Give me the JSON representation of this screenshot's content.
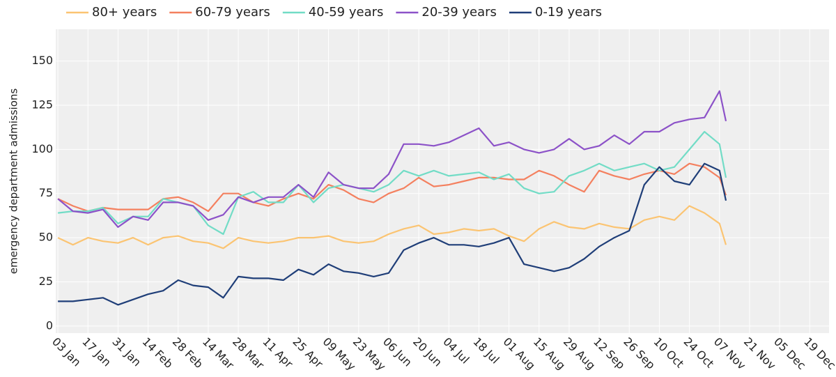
{
  "chart_data": {
    "type": "line",
    "y_label": "emergency department admissions",
    "x": [
      "03 Jan",
      "10 Jan",
      "17 Jan",
      "24 Jan",
      "31 Jan",
      "07 Feb",
      "14 Feb",
      "21 Feb",
      "28 Feb",
      "07 Mar",
      "14 Mar",
      "21 Mar",
      "28 Mar",
      "04 Apr",
      "11 Apr",
      "18 Apr",
      "25 Apr",
      "02 May",
      "09 May",
      "16 May",
      "23 May",
      "30 May",
      "06 Jun",
      "13 Jun",
      "20 Jun",
      "27 Jun",
      "04 Jul",
      "11 Jul",
      "18 Jul",
      "25 Jul",
      "01 Aug",
      "08 Aug",
      "15 Aug",
      "22 Aug",
      "29 Aug",
      "05 Sep",
      "12 Sep",
      "19 Sep",
      "26 Sep",
      "03 Oct",
      "10 Oct",
      "17 Oct",
      "24 Oct",
      "31 Oct",
      "07 Nov",
      "10 Nov"
    ],
    "series": [
      {
        "name": "80+ years",
        "color": "#fbc472",
        "values": [
          50,
          46,
          50,
          48,
          47,
          50,
          46,
          50,
          51,
          48,
          47,
          44,
          50,
          48,
          47,
          48,
          50,
          50,
          51,
          48,
          47,
          48,
          52,
          55,
          57,
          52,
          53,
          55,
          54,
          55,
          51,
          48,
          55,
          59,
          56,
          55,
          58,
          56,
          55,
          60,
          62,
          60,
          68,
          64,
          58,
          46
        ]
      },
      {
        "name": "60-79 years",
        "color": "#f4805f",
        "values": [
          72,
          68,
          65,
          67,
          66,
          66,
          66,
          72,
          73,
          70,
          65,
          75,
          75,
          70,
          68,
          72,
          75,
          72,
          80,
          77,
          72,
          70,
          75,
          78,
          84,
          79,
          80,
          82,
          84,
          84,
          83,
          83,
          88,
          85,
          80,
          76,
          88,
          85,
          83,
          86,
          88,
          86,
          92,
          90,
          84,
          74
        ]
      },
      {
        "name": "40-59 years",
        "color": "#72dcc6",
        "values": [
          64,
          65,
          65,
          67,
          58,
          62,
          62,
          72,
          70,
          68,
          57,
          52,
          73,
          76,
          70,
          70,
          80,
          70,
          78,
          80,
          78,
          76,
          80,
          88,
          85,
          88,
          85,
          86,
          87,
          83,
          86,
          78,
          75,
          76,
          85,
          88,
          92,
          88,
          90,
          92,
          88,
          90,
          100,
          110,
          103,
          84
        ]
      },
      {
        "name": "20-39 years",
        "color": "#8c52c8",
        "values": [
          72,
          65,
          64,
          66,
          56,
          62,
          60,
          70,
          70,
          68,
          60,
          63,
          73,
          70,
          73,
          73,
          80,
          73,
          87,
          80,
          78,
          78,
          86,
          103,
          103,
          102,
          104,
          108,
          112,
          102,
          104,
          100,
          98,
          100,
          106,
          100,
          102,
          108,
          103,
          110,
          110,
          115,
          117,
          118,
          133,
          116
        ]
      },
      {
        "name": "0-19 years",
        "color": "#1f3e78",
        "values": [
          14,
          14,
          15,
          16,
          12,
          15,
          18,
          20,
          26,
          23,
          22,
          16,
          28,
          27,
          27,
          26,
          32,
          29,
          35,
          31,
          30,
          28,
          30,
          43,
          47,
          50,
          46,
          46,
          45,
          47,
          50,
          35,
          33,
          31,
          33,
          38,
          45,
          50,
          54,
          80,
          90,
          82,
          80,
          92,
          88,
          71
        ]
      }
    ],
    "xlim": [
      "02 Jan",
      "28 Dec"
    ],
    "xticks": [
      "03 Jan",
      "17 Jan",
      "31 Jan",
      "14 Feb",
      "28 Feb",
      "14 Mar",
      "28 Mar",
      "11 Apr",
      "25 Apr",
      "09 May",
      "23 May",
      "06 Jun",
      "20 Jun",
      "04 Jul",
      "18 Jul",
      "01 Aug",
      "15 Aug",
      "29 Aug",
      "12 Sep",
      "26 Sep",
      "10 Oct",
      "24 Oct",
      "07 Nov",
      "21 Nov",
      "05 Dec",
      "19 Dec"
    ],
    "ylim": [
      -4,
      168
    ],
    "yticks": [
      0,
      25,
      50,
      75,
      100,
      125,
      150
    ],
    "grid": true,
    "legend": "top"
  }
}
